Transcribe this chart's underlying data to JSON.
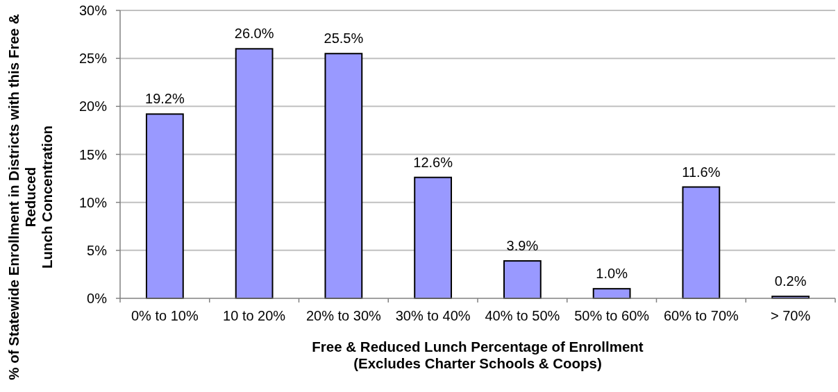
{
  "chart_data": {
    "type": "bar",
    "xlabel": "Free & Reduced Lunch Percentage of Enrollment\n(Excludes Charter Schools & Coops)",
    "ylabel": "% of Statewide Enrollment in Districts with this Free &\nReduced\nLunch Concentration",
    "categories": [
      "0% to 10%",
      "10 to 20%",
      "20% to 30%",
      "30% to 40%",
      "40% to 50%",
      "50% to 60%",
      "60% to 70%",
      "> 70%"
    ],
    "values": [
      19.2,
      26.0,
      25.5,
      12.6,
      3.9,
      1.0,
      11.6,
      0.2
    ],
    "value_labels": [
      "19.2%",
      "26.0%",
      "25.5%",
      "12.6%",
      "3.9%",
      "1.0%",
      "11.6%",
      "0.2%"
    ],
    "color": "#9999ff",
    "ylim": [
      0,
      30
    ],
    "yticks": [
      {
        "value": 0,
        "label": "0%"
      },
      {
        "value": 5,
        "label": "5%"
      },
      {
        "value": 10,
        "label": "10%"
      },
      {
        "value": 15,
        "label": "15%"
      },
      {
        "value": 20,
        "label": "20%"
      },
      {
        "value": 25,
        "label": "25%"
      },
      {
        "value": 30,
        "label": "30%"
      }
    ],
    "grid": "y"
  }
}
